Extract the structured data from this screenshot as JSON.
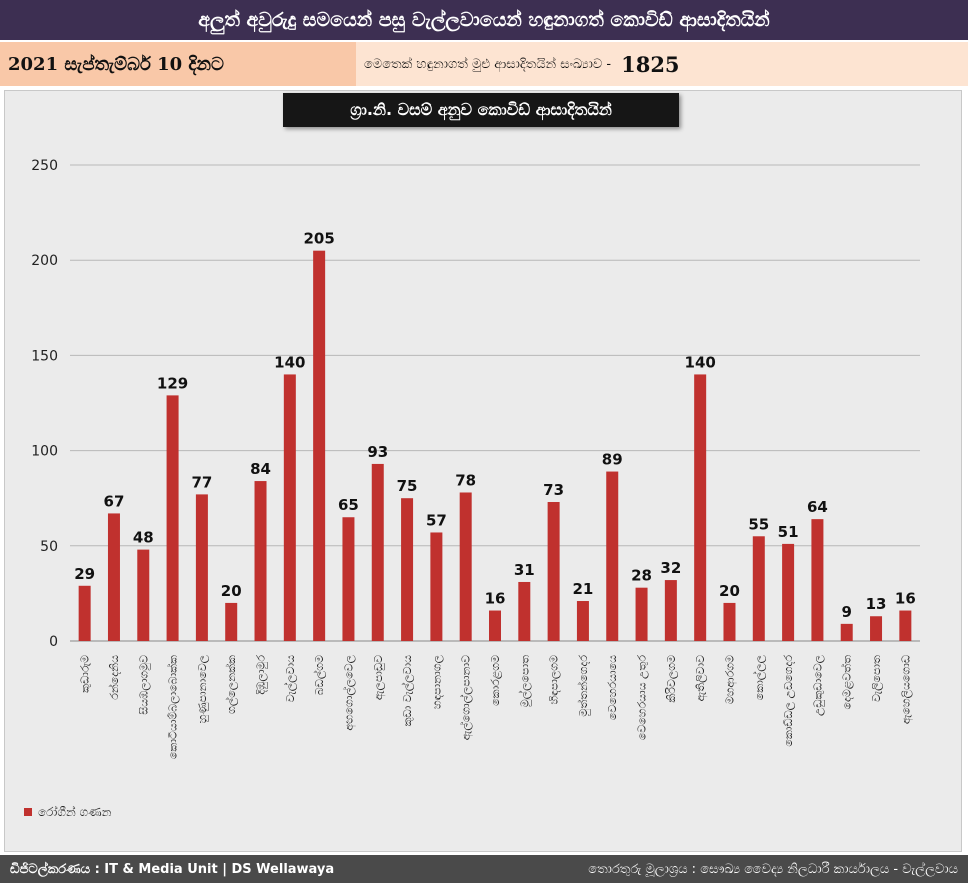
{
  "header": {
    "title": "අලුත් අවුරුදු සමයෙන් පසු වැල්ලවායෙන් හඳුනාගත් කොවිඩ් ආසාදිතයින්",
    "date_text": "2021 සැප්තැම්බර් 10 දිනට",
    "total_label": "මෙතෙක් හඳුනාගත් මුළු ආසාදිතයින් සංඛ්‍යාව -",
    "total_value": "1825"
  },
  "chart_data": {
    "type": "bar",
    "title": "ග්‍රා.නි. වසම් අනුව කොවිඩ් ආසාදිතයින්",
    "categories": [
      "කුඩාරුම",
      "රන්දෙනිය",
      "සියඹලාගමුව",
      "කොටියාම්බලාබොක්ක",
      "හුණුපානාවෙල",
      "ගල්ලෙනක්ක",
      "දිඹුලාමුර",
      "වැල්ලවාය",
      "බඩල්ගම",
      "අඟගොල්ලවෙල",
      "ඇලපාඩුව",
      "කුඩා වැල්ලවාය",
      "හඳපානාගල",
      "ඇල්ගොල්ලපානාව",
      "කොරළගම",
      "මුල්ලපොත",
      "හිඳපාලගම",
      "මුත්තන්ගෙදර",
      "වෙහෙරයායෙ",
      "වෙහෙරයාය උතුර",
      "කිරිවලගම",
      "ඇතිලිවාව",
      "මහආරගම",
      "කොල්ලල",
      "කොඩ්ඩල උඩගෙදර",
      "උඩුකුඩාවෙල",
      "දෙමළවත්ත",
      "වැලිපොත",
      "ඇහෙලියගොඩ"
    ],
    "values": [
      29,
      67,
      48,
      129,
      77,
      20,
      84,
      140,
      205,
      65,
      93,
      75,
      57,
      78,
      16,
      31,
      73,
      21,
      89,
      28,
      32,
      140,
      20,
      55,
      51,
      64,
      9,
      13,
      16
    ],
    "series": [
      {
        "name": "රෝගීන් ගණන",
        "values": [
          29,
          67,
          48,
          129,
          77,
          20,
          84,
          140,
          205,
          65,
          93,
          75,
          57,
          78,
          16,
          31,
          73,
          21,
          89,
          28,
          32,
          140,
          20,
          55,
          51,
          64,
          9,
          13,
          16
        ]
      }
    ],
    "ylim": [
      0,
      250
    ],
    "yticks": [
      0,
      50,
      100,
      150,
      200,
      250
    ],
    "grid": true,
    "legend_position": "bottom-left",
    "bar_color": "#c0312e"
  },
  "footer": {
    "left": "ඩිජිටල්කරණය : IT & Media Unit | DS Wellawaya",
    "right": "තොරතුරු මූලාශ්‍රය : සෞඛ්‍ය වෛද්‍ය නිලධාරී කාර්යාලය - වැල්ලවාය"
  }
}
